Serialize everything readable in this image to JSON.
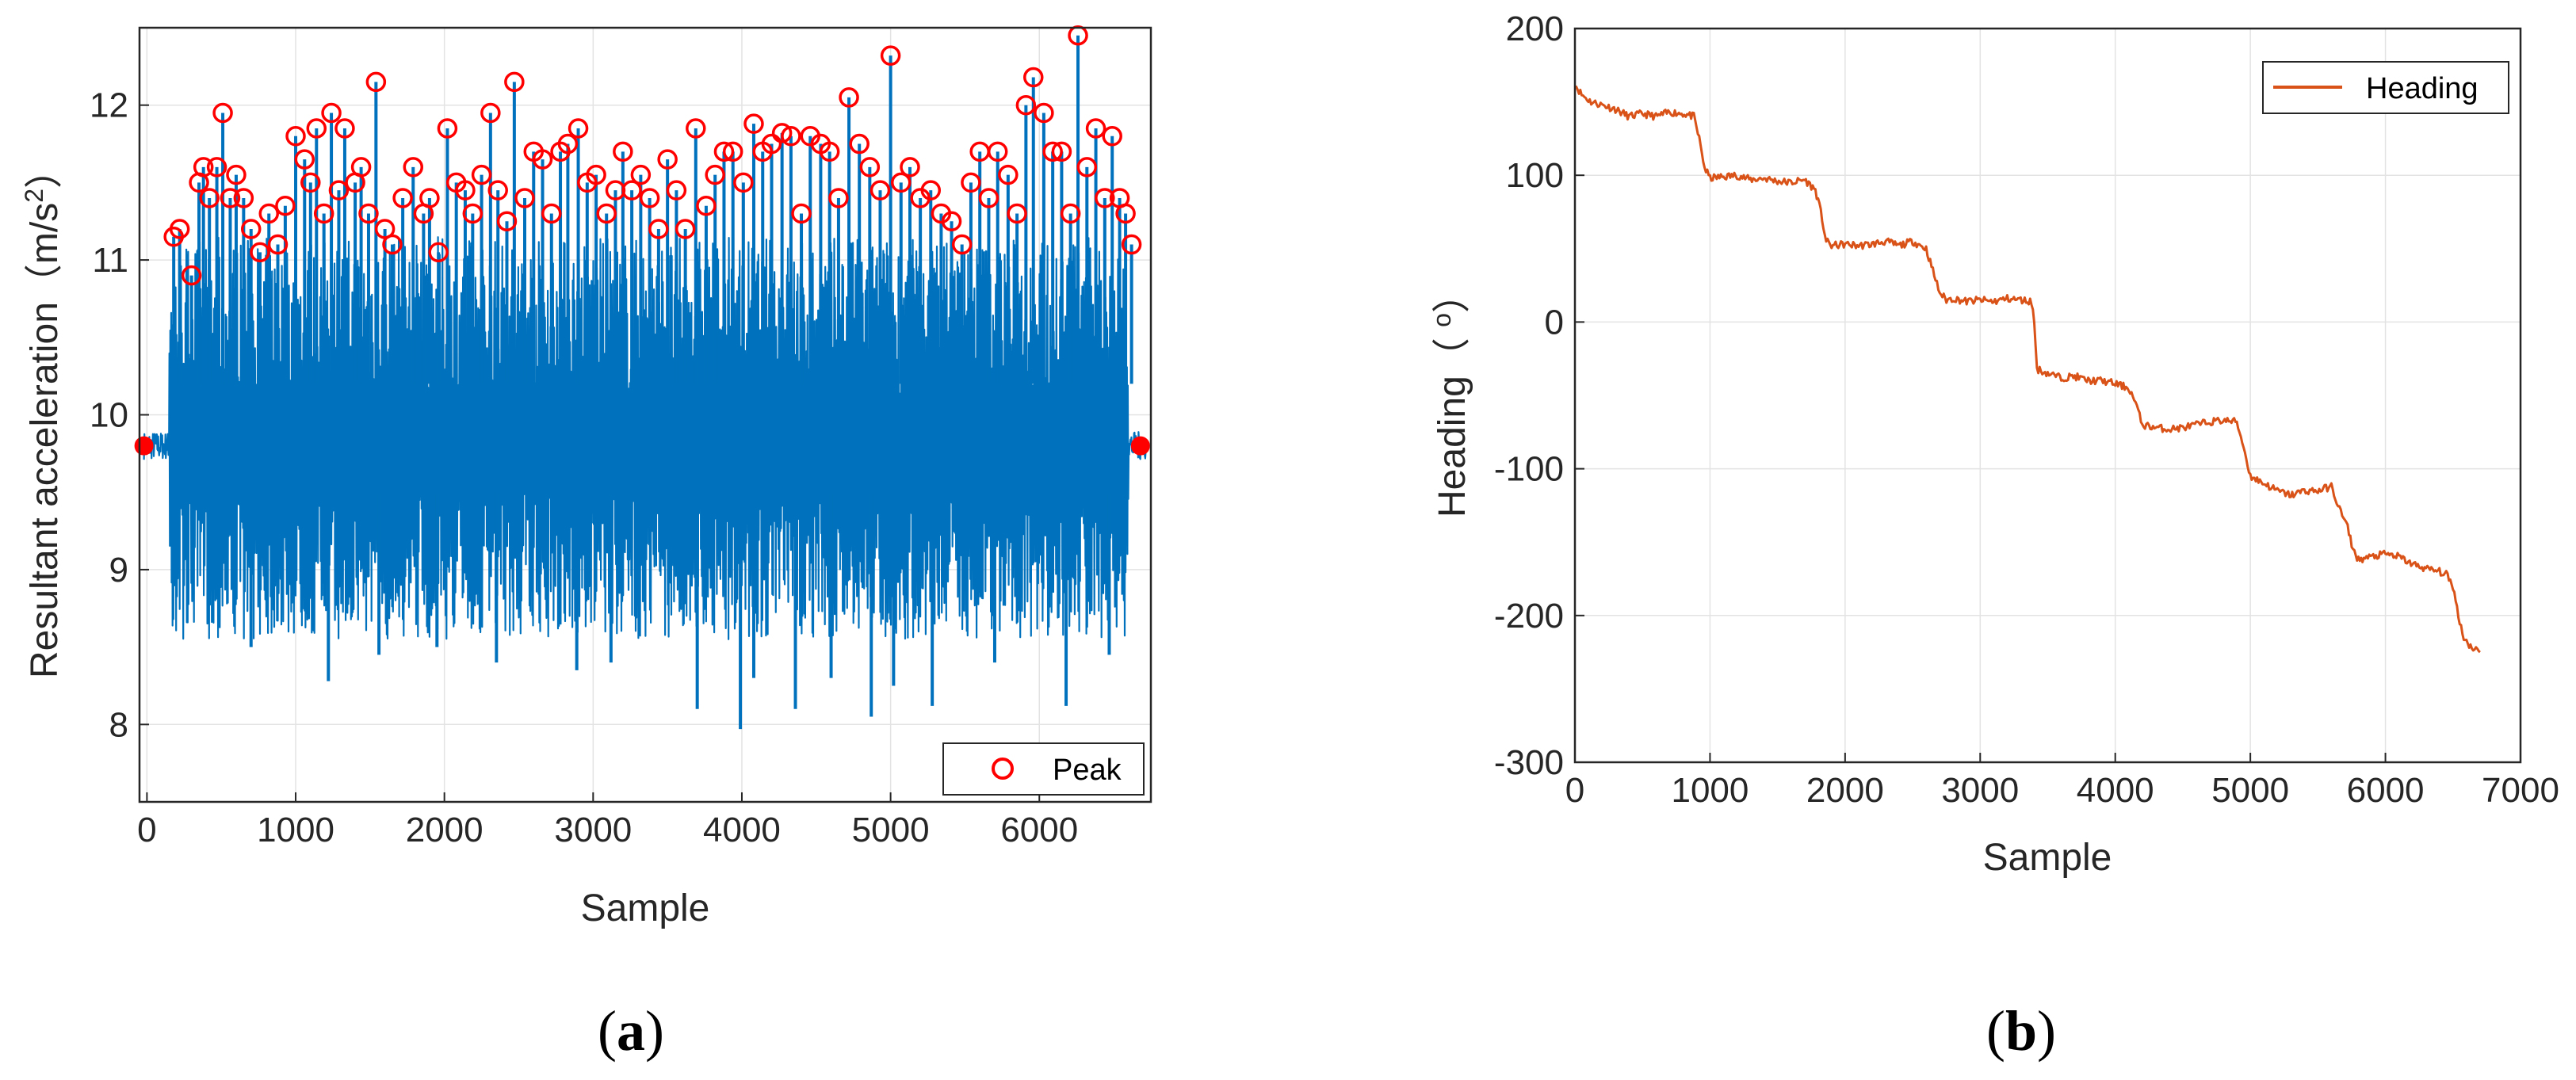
{
  "chart_data": [
    {
      "type": "line",
      "panel_label": "a",
      "title": "",
      "xlabel": "Sample",
      "ylabel": "Resultant acceleration（m/s²）",
      "ylabel_parts": {
        "main": "Resultant acceleration（m/s",
        "sup": "2",
        "end": "）"
      },
      "xlim": [
        -50,
        6750
      ],
      "ylim": [
        7.5,
        12.5
      ],
      "xticks": [
        0,
        1000,
        2000,
        3000,
        4000,
        5000,
        6000
      ],
      "yticks": [
        8,
        9,
        10,
        11,
        12
      ],
      "grid": true,
      "legend": {
        "entries": [
          "Peak"
        ],
        "placement": "bottom-right"
      },
      "series": [
        {
          "name": "Resultant acceleration",
          "color": "#0072BD",
          "baseline": 9.8,
          "active_range": [
            150,
            6600
          ],
          "min": 7.97,
          "max": 12.45
        },
        {
          "name": "Peak",
          "color": "#FF0000",
          "marker": "circle",
          "x": [
            180,
            220,
            300,
            350,
            380,
            420,
            470,
            510,
            560,
            600,
            650,
            700,
            760,
            820,
            880,
            930,
            1000,
            1060,
            1100,
            1140,
            1190,
            1240,
            1290,
            1330,
            1400,
            1440,
            1490,
            1540,
            1600,
            1650,
            1720,
            1790,
            1860,
            1900,
            1960,
            2020,
            2080,
            2140,
            2190,
            2250,
            2310,
            2360,
            2420,
            2470,
            2540,
            2600,
            2660,
            2720,
            2780,
            2830,
            2900,
            2960,
            3020,
            3090,
            3150,
            3200,
            3260,
            3320,
            3380,
            3440,
            3500,
            3560,
            3620,
            3690,
            3760,
            3820,
            3880,
            3940,
            4010,
            4080,
            4140,
            4200,
            4270,
            4330,
            4400,
            4460,
            4530,
            4590,
            4650,
            4720,
            4790,
            4860,
            4930,
            5000,
            5070,
            5130,
            5200,
            5270,
            5340,
            5410,
            5480,
            5540,
            5600,
            5660,
            5720,
            5790,
            5850,
            5910,
            5960,
            6030,
            6090,
            6150,
            6210,
            6260,
            6320,
            6380,
            6440,
            6490,
            6540,
            6580,
            6620
          ],
          "y": [
            11.15,
            11.2,
            10.9,
            11.5,
            11.6,
            11.4,
            11.6,
            11.95,
            11.4,
            11.55,
            11.4,
            11.2,
            11.05,
            11.3,
            11.1,
            11.35,
            11.8,
            11.65,
            11.5,
            11.85,
            11.3,
            11.95,
            11.45,
            11.85,
            11.5,
            11.6,
            11.3,
            12.15,
            11.2,
            11.1,
            11.4,
            11.6,
            11.3,
            11.4,
            11.05,
            11.85,
            11.5,
            11.45,
            11.3,
            11.55,
            11.95,
            11.45,
            11.25,
            12.15,
            11.4,
            11.7,
            11.65,
            11.3,
            11.7,
            11.75,
            11.85,
            11.5,
            11.55,
            11.3,
            11.45,
            11.7,
            11.45,
            11.55,
            11.4,
            11.2,
            11.65,
            11.45,
            11.2,
            11.85,
            11.35,
            11.55,
            11.7,
            11.7,
            11.5,
            11.88,
            11.7,
            11.75,
            11.82,
            11.8,
            11.3,
            11.8,
            11.75,
            11.7,
            11.4,
            12.05,
            11.75,
            11.6,
            11.45,
            12.32,
            11.5,
            11.6,
            11.4,
            11.45,
            11.3,
            11.25,
            11.1,
            11.5,
            11.7,
            11.4,
            11.7,
            11.55,
            11.3,
            12.0,
            12.18,
            11.95,
            11.7,
            11.7,
            11.3,
            12.45,
            11.6,
            11.85,
            11.4,
            11.8,
            11.4,
            11.3,
            11.1
          ]
        },
        {
          "name": "Endpoints",
          "color": "#FF0000",
          "marker": "filled-circle",
          "x": [
            -20,
            6680
          ],
          "y": [
            9.8,
            9.8
          ]
        }
      ]
    },
    {
      "type": "line",
      "panel_label": "b",
      "title": "",
      "xlabel": "Sample",
      "ylabel": "Heading（ °）",
      "ylabel_parts": {
        "main": "Heading（ ",
        "sup": "o",
        "end": "）"
      },
      "xlim": [
        0,
        7000
      ],
      "ylim": [
        -300,
        200
      ],
      "xticks": [
        0,
        1000,
        2000,
        3000,
        4000,
        5000,
        6000,
        7000
      ],
      "yticks": [
        -300,
        -200,
        -100,
        0,
        100,
        200
      ],
      "grid": true,
      "legend": {
        "entries": [
          "Heading"
        ],
        "placement": "top-right"
      },
      "series": [
        {
          "name": "Heading",
          "color": "#D95319",
          "x": [
            0,
            50,
            120,
            200,
            300,
            400,
            500,
            600,
            700,
            800,
            880,
            920,
            960,
            1000,
            1100,
            1200,
            1300,
            1400,
            1500,
            1600,
            1700,
            1780,
            1820,
            1860,
            1900,
            2000,
            2100,
            2200,
            2300,
            2400,
            2500,
            2600,
            2650,
            2700,
            2750,
            2800,
            2900,
            3000,
            3100,
            3200,
            3300,
            3380,
            3400,
            3420,
            3500,
            3600,
            3700,
            3800,
            3900,
            4000,
            4100,
            4150,
            4200,
            4300,
            4400,
            4500,
            4600,
            4700,
            4800,
            4900,
            4950,
            5000,
            5100,
            5200,
            5300,
            5400,
            5500,
            5600,
            5650,
            5720,
            5760,
            5800,
            5900,
            6000,
            6100,
            6200,
            6300,
            6400,
            6450,
            6500,
            6540,
            6580,
            6620,
            6700
          ],
          "y": [
            162,
            155,
            150,
            148,
            145,
            140,
            142,
            140,
            143,
            142,
            140,
            125,
            105,
            98,
            99,
            100,
            97,
            98,
            96,
            95,
            97,
            90,
            75,
            55,
            52,
            53,
            52,
            53,
            55,
            52,
            55,
            50,
            35,
            20,
            15,
            16,
            14,
            15,
            14,
            16,
            15,
            14,
            0,
            -32,
            -35,
            -38,
            -37,
            -40,
            -40,
            -42,
            -45,
            -55,
            -70,
            -72,
            -73,
            -72,
            -70,
            -68,
            -67,
            -68,
            -85,
            -105,
            -110,
            -115,
            -118,
            -115,
            -115,
            -112,
            -125,
            -140,
            -155,
            -162,
            -160,
            -158,
            -160,
            -165,
            -168,
            -170,
            -172,
            -180,
            -200,
            -215,
            -220,
            -225
          ]
        }
      ]
    }
  ],
  "captions": {
    "a": "a",
    "b": "b"
  }
}
